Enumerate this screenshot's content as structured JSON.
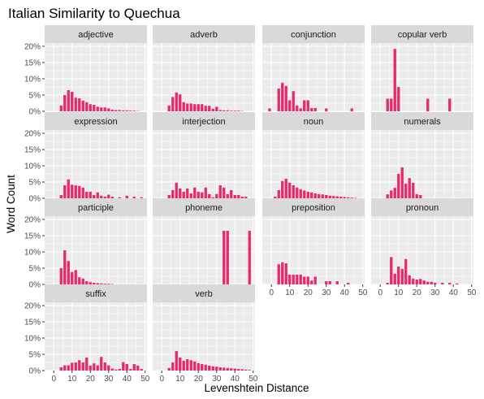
{
  "chart_data": {
    "type": "bar",
    "title": "Italian Similarity to Quechua",
    "xlabel": "Levenshtein Distance",
    "ylabel": "Word Count",
    "xlim": [
      -5,
      51
    ],
    "ylim": [
      0,
      21
    ],
    "x_ticks": [
      0,
      10,
      20,
      30,
      40,
      50
    ],
    "x_tick_labels": [
      "0",
      "10",
      "20",
      "30",
      "40",
      "50"
    ],
    "y_ticks": [
      0,
      5,
      10,
      15,
      20
    ],
    "y_tick_labels": [
      "0%",
      "5%",
      "10%",
      "15%",
      "20%"
    ],
    "bar_color": "#e8296a",
    "panel_background": "#ebebeb",
    "strip_background": "#d9d9d9",
    "grid": true,
    "facets": [
      {
        "name": "adjective",
        "bars": [
          [
            4,
            1.8
          ],
          [
            6,
            5.0
          ],
          [
            8,
            6.5
          ],
          [
            10,
            6.0
          ],
          [
            12,
            4.2
          ],
          [
            14,
            4.0
          ],
          [
            16,
            3.3
          ],
          [
            18,
            2.8
          ],
          [
            20,
            2.2
          ],
          [
            22,
            2.0
          ],
          [
            24,
            1.4
          ],
          [
            26,
            1.2
          ],
          [
            28,
            1.2
          ],
          [
            30,
            0.9
          ],
          [
            32,
            0.5
          ],
          [
            34,
            0.4
          ],
          [
            36,
            0.4
          ],
          [
            38,
            0.3
          ],
          [
            40,
            0.3
          ],
          [
            42,
            0.2
          ],
          [
            44,
            0.2
          ],
          [
            46,
            0.1
          ]
        ]
      },
      {
        "name": "adverb",
        "bars": [
          [
            4,
            1.8
          ],
          [
            6,
            4.4
          ],
          [
            8,
            5.8
          ],
          [
            10,
            5.2
          ],
          [
            12,
            2.8
          ],
          [
            14,
            2.4
          ],
          [
            16,
            2.4
          ],
          [
            18,
            2.2
          ],
          [
            20,
            2.2
          ],
          [
            22,
            2.2
          ],
          [
            24,
            1.7
          ],
          [
            26,
            1.7
          ],
          [
            28,
            0.8
          ],
          [
            30,
            1.4
          ],
          [
            32,
            0.4
          ],
          [
            34,
            0.3
          ],
          [
            36,
            0.3
          ],
          [
            38,
            0.2
          ],
          [
            40,
            0.2
          ],
          [
            42,
            0.2
          ],
          [
            44,
            0.1
          ]
        ]
      },
      {
        "name": "conjunction",
        "bars": [
          [
            -1,
            0.9
          ],
          [
            4,
            7.0
          ],
          [
            6,
            8.8
          ],
          [
            8,
            7.8
          ],
          [
            10,
            3.4
          ],
          [
            12,
            6.2
          ],
          [
            14,
            1.8
          ],
          [
            16,
            0.9
          ],
          [
            18,
            3.4
          ],
          [
            20,
            3.4
          ],
          [
            22,
            1.0
          ],
          [
            24,
            1.0
          ],
          [
            30,
            0.9
          ],
          [
            44,
            0.9
          ]
        ]
      },
      {
        "name": "copular verb",
        "bars": [
          [
            4,
            3.9
          ],
          [
            6,
            3.9
          ],
          [
            8,
            19.2
          ],
          [
            10,
            7.5
          ],
          [
            26,
            3.9
          ],
          [
            38,
            3.9
          ]
        ]
      },
      {
        "name": "expression",
        "bars": [
          [
            4,
            1.0
          ],
          [
            6,
            4.0
          ],
          [
            8,
            5.8
          ],
          [
            10,
            4.2
          ],
          [
            12,
            4.0
          ],
          [
            14,
            3.8
          ],
          [
            16,
            3.3
          ],
          [
            18,
            2.0
          ],
          [
            20,
            2.0
          ],
          [
            22,
            1.0
          ],
          [
            24,
            1.8
          ],
          [
            26,
            0.8
          ],
          [
            28,
            0.5
          ],
          [
            30,
            1.1
          ],
          [
            32,
            0.5
          ],
          [
            36,
            0.3
          ],
          [
            40,
            0.8
          ],
          [
            44,
            0.5
          ],
          [
            48,
            0.3
          ]
        ]
      },
      {
        "name": "interjection",
        "bars": [
          [
            4,
            1.0
          ],
          [
            6,
            2.5
          ],
          [
            8,
            4.8
          ],
          [
            10,
            3.0
          ],
          [
            12,
            2.0
          ],
          [
            14,
            3.0
          ],
          [
            16,
            1.5
          ],
          [
            18,
            3.3
          ],
          [
            20,
            2.0
          ],
          [
            22,
            1.8
          ],
          [
            24,
            3.3
          ],
          [
            26,
            1.3
          ],
          [
            28,
            0.3
          ],
          [
            30,
            1.3
          ],
          [
            32,
            4.0
          ],
          [
            34,
            3.3
          ],
          [
            36,
            1.3
          ],
          [
            38,
            2.5
          ],
          [
            40,
            1.0
          ],
          [
            42,
            1.0
          ],
          [
            44,
            0.5
          ],
          [
            46,
            0.5
          ]
        ]
      },
      {
        "name": "noun",
        "bars": [
          [
            2,
            0.5
          ],
          [
            4,
            2.5
          ],
          [
            6,
            5.3
          ],
          [
            8,
            6.0
          ],
          [
            10,
            4.8
          ],
          [
            12,
            4.0
          ],
          [
            14,
            3.3
          ],
          [
            16,
            2.8
          ],
          [
            18,
            2.4
          ],
          [
            20,
            2.0
          ],
          [
            22,
            1.8
          ],
          [
            24,
            1.5
          ],
          [
            26,
            1.3
          ],
          [
            28,
            1.2
          ],
          [
            30,
            1.0
          ],
          [
            32,
            0.8
          ],
          [
            34,
            0.7
          ],
          [
            36,
            0.6
          ],
          [
            38,
            0.5
          ],
          [
            40,
            0.4
          ],
          [
            42,
            0.3
          ],
          [
            44,
            0.2
          ],
          [
            46,
            0.1
          ]
        ]
      },
      {
        "name": "numerals",
        "bars": [
          [
            4,
            1.2
          ],
          [
            6,
            2.4
          ],
          [
            8,
            3.2
          ],
          [
            10,
            7.5
          ],
          [
            12,
            9.5
          ],
          [
            14,
            4.5
          ],
          [
            16,
            6.2
          ],
          [
            18,
            4.8
          ],
          [
            20,
            1.3
          ],
          [
            22,
            1.0
          ]
        ]
      },
      {
        "name": "participle",
        "bars": [
          [
            4,
            5.0
          ],
          [
            6,
            10.5
          ],
          [
            8,
            7.2
          ],
          [
            10,
            3.8
          ],
          [
            12,
            4.4
          ],
          [
            14,
            2.2
          ],
          [
            16,
            1.8
          ],
          [
            18,
            1.0
          ],
          [
            20,
            0.7
          ],
          [
            22,
            0.5
          ],
          [
            24,
            0.4
          ],
          [
            26,
            0.3
          ],
          [
            28,
            0.2
          ],
          [
            30,
            0.2
          ],
          [
            32,
            0.1
          ]
        ]
      },
      {
        "name": "phoneme",
        "bars": [
          [
            34,
            16.5
          ],
          [
            36,
            16.5
          ],
          [
            48,
            16.5
          ]
        ]
      },
      {
        "name": "preposition",
        "bars": [
          [
            4,
            6.2
          ],
          [
            6,
            6.8
          ],
          [
            8,
            6.5
          ],
          [
            10,
            3.0
          ],
          [
            12,
            3.0
          ],
          [
            14,
            3.0
          ],
          [
            16,
            3.0
          ],
          [
            18,
            2.4
          ],
          [
            20,
            2.4
          ],
          [
            22,
            1.2
          ],
          [
            24,
            2.4
          ],
          [
            30,
            1.0
          ],
          [
            32,
            1.0
          ],
          [
            36,
            1.0
          ],
          [
            42,
            0.5
          ]
        ]
      },
      {
        "name": "pronoun",
        "bars": [
          [
            4,
            0.5
          ],
          [
            6,
            8.4
          ],
          [
            8,
            3.3
          ],
          [
            10,
            5.5
          ],
          [
            12,
            4.8
          ],
          [
            14,
            7.8
          ],
          [
            16,
            2.8
          ],
          [
            18,
            1.8
          ],
          [
            20,
            1.5
          ],
          [
            22,
            1.7
          ],
          [
            24,
            1.2
          ],
          [
            26,
            0.8
          ],
          [
            28,
            0.8
          ],
          [
            30,
            0.5
          ],
          [
            34,
            0.5
          ],
          [
            38,
            0.5
          ],
          [
            42,
            0.3
          ]
        ]
      },
      {
        "name": "suffix",
        "bars": [
          [
            4,
            1.0
          ],
          [
            6,
            1.6
          ],
          [
            8,
            1.6
          ],
          [
            10,
            2.4
          ],
          [
            12,
            2.5
          ],
          [
            14,
            3.2
          ],
          [
            16,
            2.5
          ],
          [
            18,
            4.0
          ],
          [
            20,
            1.5
          ],
          [
            22,
            2.2
          ],
          [
            24,
            1.6
          ],
          [
            26,
            4.2
          ],
          [
            28,
            2.5
          ],
          [
            30,
            1.6
          ],
          [
            32,
            0.6
          ],
          [
            34,
            0.3
          ],
          [
            36,
            0.5
          ],
          [
            38,
            2.6
          ],
          [
            40,
            2.0
          ],
          [
            42,
            0.5
          ],
          [
            44,
            2.0
          ],
          [
            46,
            1.5
          ],
          [
            48,
            0.5
          ]
        ]
      },
      {
        "name": "verb",
        "bars": [
          [
            4,
            0.8
          ],
          [
            6,
            2.5
          ],
          [
            8,
            6.0
          ],
          [
            10,
            4.0
          ],
          [
            12,
            3.0
          ],
          [
            14,
            3.5
          ],
          [
            16,
            3.2
          ],
          [
            18,
            2.8
          ],
          [
            20,
            2.3
          ],
          [
            22,
            2.0
          ],
          [
            24,
            1.8
          ],
          [
            26,
            1.5
          ],
          [
            28,
            1.3
          ],
          [
            30,
            1.2
          ],
          [
            32,
            1.0
          ],
          [
            34,
            0.9
          ],
          [
            36,
            0.8
          ],
          [
            38,
            0.7
          ],
          [
            40,
            0.6
          ],
          [
            42,
            0.5
          ],
          [
            44,
            0.4
          ],
          [
            46,
            0.3
          ],
          [
            48,
            0.2
          ]
        ]
      }
    ]
  }
}
